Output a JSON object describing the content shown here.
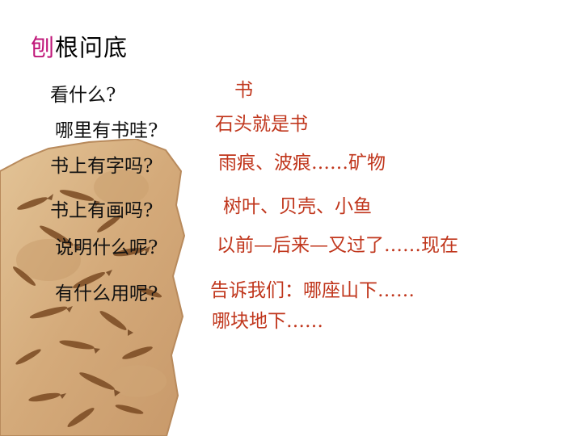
{
  "slide": {
    "title_accent": "刨",
    "title_rest": "根问底",
    "questions": [
      "看什么?",
      "哪里有书哇?",
      "书上有字吗?",
      "书上有画吗?",
      "说明什么呢?",
      "有什么用呢?"
    ],
    "answers": [
      "书",
      "石头就是书",
      "雨痕、波痕……矿物",
      "树叶、贝壳、小鱼",
      "以前—后来—又过了……现在",
      "告诉我们：哪座山下……",
      "哪块地下……"
    ]
  },
  "colors": {
    "title_accent": "#c0187a",
    "answer_text": "#c0361c",
    "fossil_stone": "#d9b588",
    "fossil_marks": "#7a4a22"
  }
}
